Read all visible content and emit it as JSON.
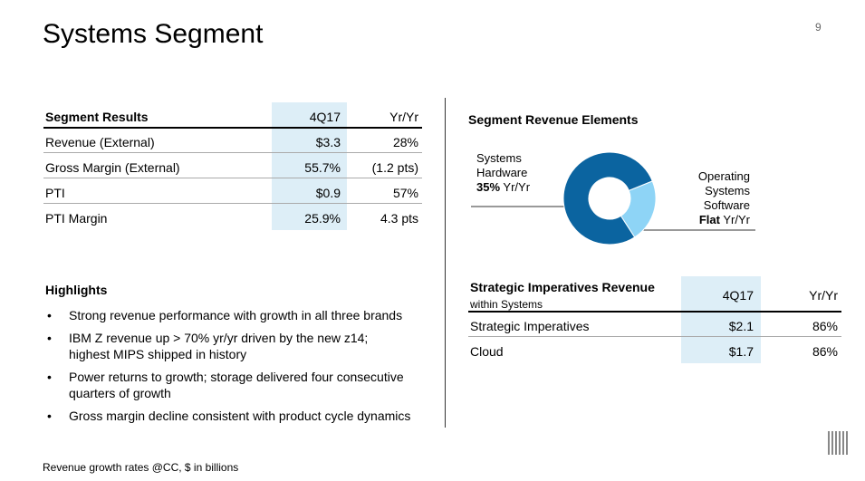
{
  "header": {
    "title": "Systems Segment",
    "page": "9"
  },
  "segment_results": {
    "headers": [
      "Segment Results",
      "4Q17",
      "Yr/Yr"
    ],
    "rows": [
      [
        "Revenue (External)",
        "$3.3",
        "28%"
      ],
      [
        "Gross Margin (External)",
        "55.7%",
        "(1.2 pts)"
      ],
      [
        "PTI",
        "$0.9",
        "57%"
      ],
      [
        "PTI Margin",
        "25.9%",
        "4.3 pts"
      ]
    ]
  },
  "highlights": {
    "title": "Highlights",
    "items": [
      [
        "Strong revenue performance with growth in all three brands"
      ],
      [
        "IBM Z revenue up > 70% yr/yr driven by the new z14;",
        "highest MIPS shipped in history"
      ],
      [
        "Power returns to growth; storage delivered four consecutive",
        "quarters of growth"
      ],
      [
        "Gross margin decline consistent with product cycle dynamics"
      ]
    ]
  },
  "revenue_elements": {
    "title": "Segment Revenue Elements",
    "hardware": {
      "lines": [
        "Systems",
        "Hardware"
      ],
      "growth": "35%",
      "unit": "Yr/Yr"
    },
    "software": {
      "lines": [
        "Operating",
        "Systems",
        "Software"
      ],
      "growth": "Flat",
      "unit": "Yr/Yr"
    },
    "donut": {
      "values": [
        22,
        78
      ],
      "colors": [
        "#8ed4f6",
        "#0b64a0"
      ]
    }
  },
  "strategic": {
    "title": "Strategic Imperatives Revenue",
    "subtitle": "within Systems",
    "headers": [
      "4Q17",
      "Yr/Yr"
    ],
    "rows": [
      [
        "Strategic Imperatives",
        "$2.1",
        "86%"
      ],
      [
        "Cloud",
        "$1.7",
        "86%"
      ]
    ]
  },
  "footer": "Revenue growth rates @CC, $ in billions"
}
